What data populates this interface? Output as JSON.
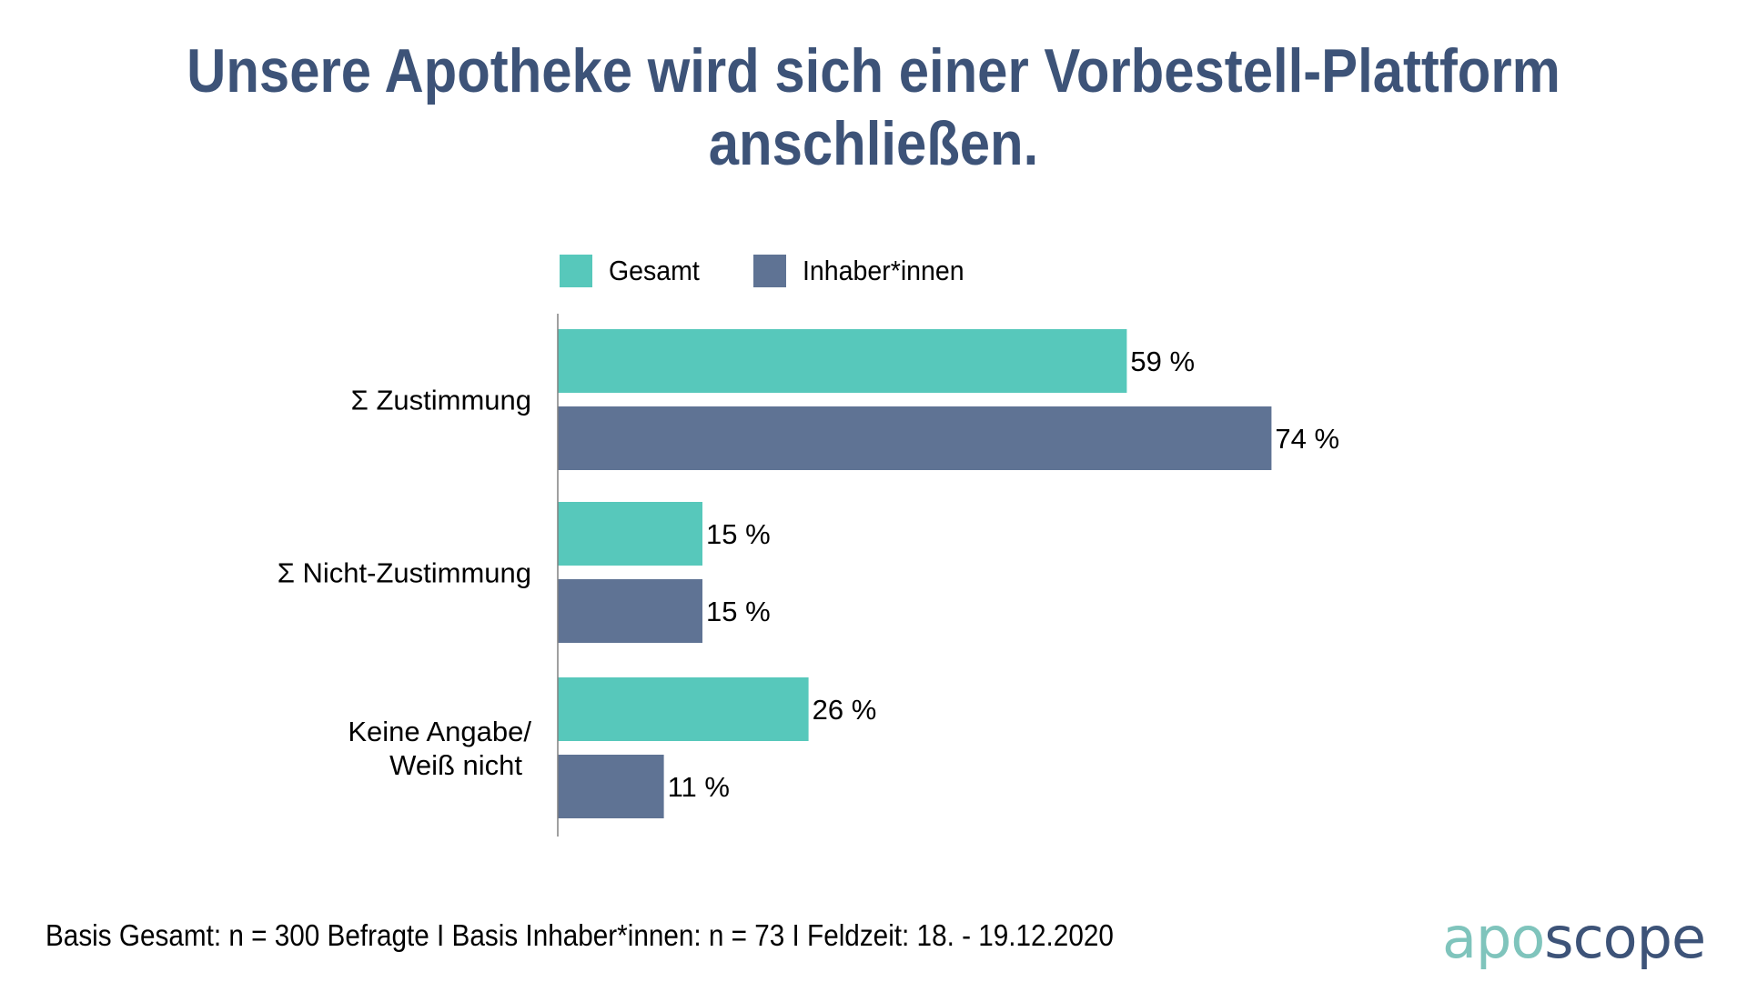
{
  "title": {
    "line1": "Unsere Apotheke wird sich einer Vorbestell-Plattform",
    "line2": "anschließen."
  },
  "colors": {
    "title": "#3d5378",
    "gesamt": "#57c8bb",
    "inhaber": "#5f7394",
    "axis": "#808080"
  },
  "chart_data": {
    "type": "bar",
    "orientation": "horizontal",
    "title": "Unsere Apotheke wird sich einer Vorbestell-Plattform anschließen.",
    "categories": [
      "Σ Zustimmung",
      "Σ Nicht-Zustimmung",
      "Keine Angabe/\nWeiß nicht"
    ],
    "category_lines": [
      [
        "Σ Zustimmung"
      ],
      [
        "Σ Nicht-Zustimmung"
      ],
      [
        "Keine Angabe/",
        "Weiß nicht"
      ]
    ],
    "series": [
      {
        "name": "Gesamt",
        "values": [
          59,
          15,
          26
        ],
        "labels": [
          "59 %",
          "15 %",
          "26 %"
        ]
      },
      {
        "name": "Inhaber*innen",
        "values": [
          74,
          15,
          11
        ],
        "labels": [
          "74 %",
          "15 %",
          "11 %"
        ]
      }
    ],
    "unit": "%",
    "xlim": [
      0,
      100
    ],
    "xlabel": "",
    "ylabel": "",
    "grid": false,
    "legend": "top"
  },
  "legend": {
    "items": [
      {
        "label": "Gesamt"
      },
      {
        "label": "Inhaber*innen"
      }
    ]
  },
  "footer": {
    "text": "Basis Gesamt: n = 300 Befragte I Basis Inhaber*innen: n = 73 I Feldzeit: 18. - 19.12.2020"
  },
  "logo": {
    "part1": "apo",
    "part2": "scope"
  }
}
